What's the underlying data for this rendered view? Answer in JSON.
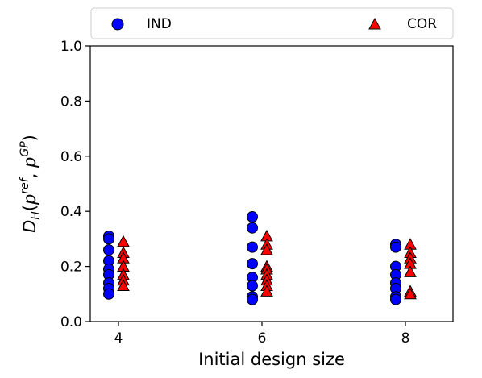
{
  "chart_data": {
    "type": "scatter",
    "xlabel": "Initial design size",
    "ylabel": "D_H(p^ref, p^GP)",
    "ylabel_parts": {
      "main": "D",
      "main_sub": "H",
      "open": "(",
      "p1": "p",
      "p1_sup": "ref",
      "comma": ", ",
      "p2": "p",
      "p2_sup": "GP",
      "close": ")"
    },
    "x_ticks": [
      "4",
      "6",
      "8"
    ],
    "y_ticks": [
      "0.0",
      "0.2",
      "0.4",
      "0.6",
      "0.8",
      "1.0"
    ],
    "ylim": [
      0.0,
      1.0
    ],
    "grid": false,
    "legend_position": "top",
    "series": [
      {
        "name": "IND",
        "color": "#0000ff",
        "marker": "circle",
        "points": [
          {
            "x": 4,
            "y": 0.31
          },
          {
            "x": 4,
            "y": 0.3
          },
          {
            "x": 4,
            "y": 0.26
          },
          {
            "x": 4,
            "y": 0.22
          },
          {
            "x": 4,
            "y": 0.19
          },
          {
            "x": 4,
            "y": 0.17
          },
          {
            "x": 4,
            "y": 0.14
          },
          {
            "x": 4,
            "y": 0.12
          },
          {
            "x": 4,
            "y": 0.1
          },
          {
            "x": 6,
            "y": 0.38
          },
          {
            "x": 6,
            "y": 0.34
          },
          {
            "x": 6,
            "y": 0.27
          },
          {
            "x": 6,
            "y": 0.21
          },
          {
            "x": 6,
            "y": 0.16
          },
          {
            "x": 6,
            "y": 0.13
          },
          {
            "x": 6,
            "y": 0.09
          },
          {
            "x": 6,
            "y": 0.08
          },
          {
            "x": 8,
            "y": 0.28
          },
          {
            "x": 8,
            "y": 0.27
          },
          {
            "x": 8,
            "y": 0.2
          },
          {
            "x": 8,
            "y": 0.17
          },
          {
            "x": 8,
            "y": 0.14
          },
          {
            "x": 8,
            "y": 0.12
          },
          {
            "x": 8,
            "y": 0.09
          },
          {
            "x": 8,
            "y": 0.08
          }
        ]
      },
      {
        "name": "COR",
        "color": "#ff0000",
        "marker": "triangle",
        "points": [
          {
            "x": 4,
            "y": 0.29
          },
          {
            "x": 4,
            "y": 0.25
          },
          {
            "x": 4,
            "y": 0.23
          },
          {
            "x": 4,
            "y": 0.2
          },
          {
            "x": 4,
            "y": 0.17
          },
          {
            "x": 4,
            "y": 0.15
          },
          {
            "x": 4,
            "y": 0.13
          },
          {
            "x": 6,
            "y": 0.31
          },
          {
            "x": 6,
            "y": 0.28
          },
          {
            "x": 6,
            "y": 0.26
          },
          {
            "x": 6,
            "y": 0.2
          },
          {
            "x": 6,
            "y": 0.19
          },
          {
            "x": 6,
            "y": 0.17
          },
          {
            "x": 6,
            "y": 0.15
          },
          {
            "x": 6,
            "y": 0.13
          },
          {
            "x": 6,
            "y": 0.11
          },
          {
            "x": 8,
            "y": 0.28
          },
          {
            "x": 8,
            "y": 0.25
          },
          {
            "x": 8,
            "y": 0.23
          },
          {
            "x": 8,
            "y": 0.21
          },
          {
            "x": 8,
            "y": 0.18
          },
          {
            "x": 8,
            "y": 0.11
          },
          {
            "x": 8,
            "y": 0.1
          }
        ]
      }
    ]
  }
}
